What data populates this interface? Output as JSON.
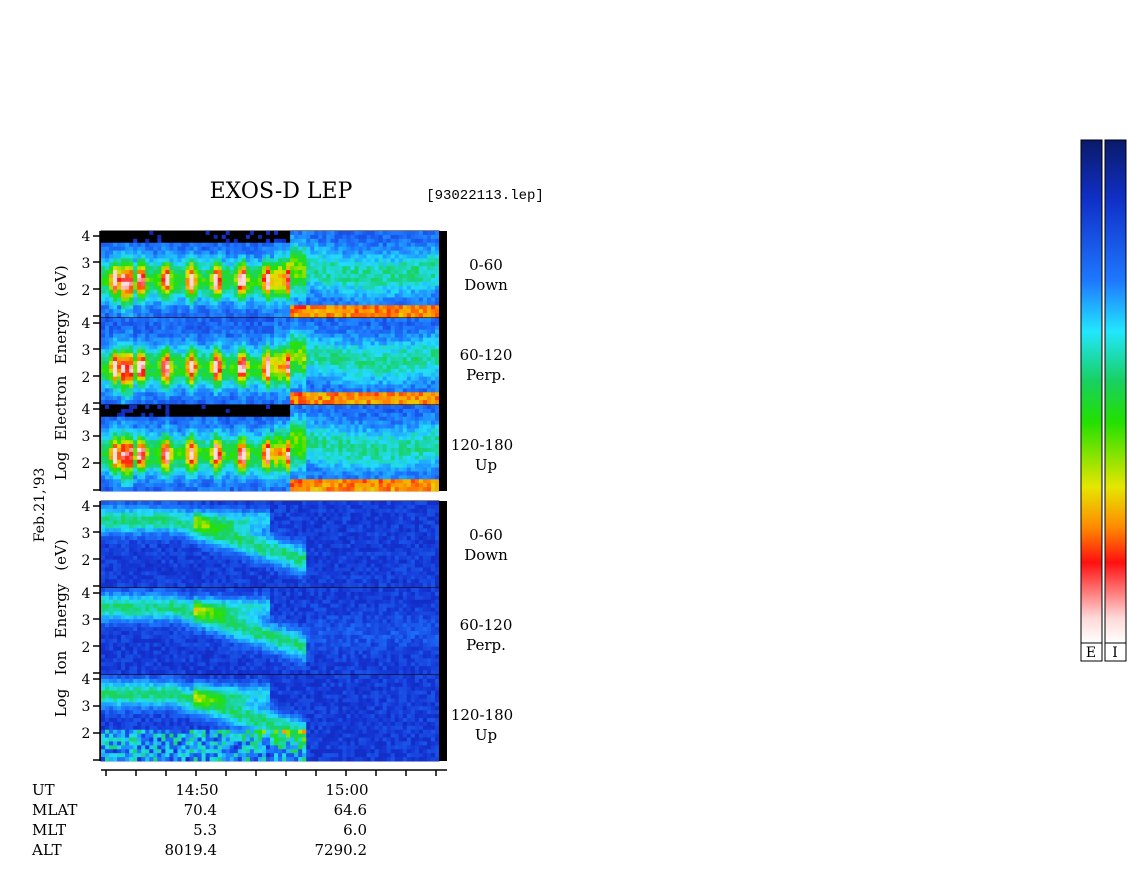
{
  "chart_data": {
    "type": "heatmap",
    "title": "EXOS-D LEP",
    "file_label": "[93022113.lep]",
    "date_label": "Feb.21,'93",
    "electron_group_label": [
      "Log",
      "Electron",
      "Energy",
      "(eV)"
    ],
    "ion_group_label": [
      "Log",
      "Ion",
      "Energy",
      "(eV)"
    ],
    "y_ticks": [
      "4",
      "3",
      "2"
    ],
    "panels": [
      {
        "species": "electron",
        "pitch_range": "0-60",
        "direction": "Down"
      },
      {
        "species": "electron",
        "pitch_range": "60-120",
        "direction": "Perp."
      },
      {
        "species": "electron",
        "pitch_range": "120-180",
        "direction": "Up"
      },
      {
        "species": "ion",
        "pitch_range": "0-60",
        "direction": "Down"
      },
      {
        "species": "ion",
        "pitch_range": "60-120",
        "direction": "Perp."
      },
      {
        "species": "ion",
        "pitch_range": "120-180",
        "direction": "Up"
      }
    ],
    "x_axis": {
      "row_labels": [
        "UT",
        "MLAT",
        "MLT",
        "ALT"
      ],
      "columns": [
        {
          "UT": "14:50",
          "MLAT": "70.4",
          "MLT": "5.3",
          "ALT": "8019.4"
        },
        {
          "UT": "15:00",
          "MLAT": "64.6",
          "MLT": "6.0",
          "ALT": "7290.2"
        }
      ]
    },
    "colorbars": [
      {
        "label": "E",
        "stops": [
          "#0a1a6a",
          "#1030c8",
          "#1e78ff",
          "#22e6ff",
          "#18d060",
          "#22e000",
          "#e6e600",
          "#ff8a00",
          "#ff1010",
          "#ffd8d8",
          "#ffffff"
        ]
      },
      {
        "label": "I",
        "stops": [
          "#0a1a6a",
          "#1030c8",
          "#1e78ff",
          "#22e6ff",
          "#18d060",
          "#22e000",
          "#e6e600",
          "#ff8a00",
          "#ff1010",
          "#ffd8d8",
          "#ffffff"
        ]
      }
    ]
  }
}
